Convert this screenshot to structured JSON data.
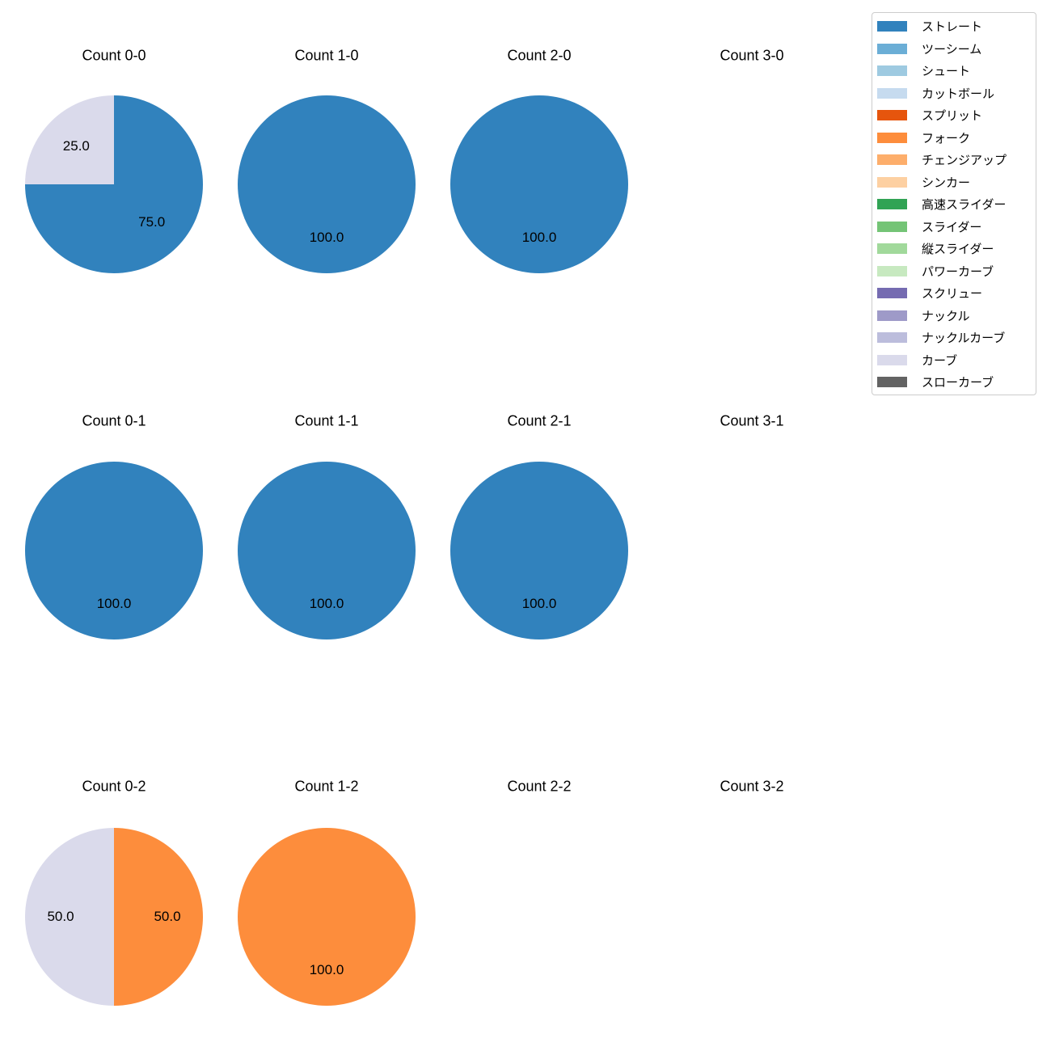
{
  "figure": {
    "background_color": "#ffffff",
    "text_color": "#000000"
  },
  "legend": {
    "items": [
      {
        "label": "ストレート",
        "color": "#3182bd"
      },
      {
        "label": "ツーシーム",
        "color": "#6baed6"
      },
      {
        "label": "シュート",
        "color": "#9ecae1"
      },
      {
        "label": "カットボール",
        "color": "#c6dbef"
      },
      {
        "label": "スプリット",
        "color": "#e6550d"
      },
      {
        "label": "フォーク",
        "color": "#fd8d3c"
      },
      {
        "label": "チェンジアップ",
        "color": "#fdae6b"
      },
      {
        "label": "シンカー",
        "color": "#fdd0a2"
      },
      {
        "label": "高速スライダー",
        "color": "#31a354"
      },
      {
        "label": "スライダー",
        "color": "#74c476"
      },
      {
        "label": "縦スライダー",
        "color": "#a1d99b"
      },
      {
        "label": "パワーカーブ",
        "color": "#c7e9c0"
      },
      {
        "label": "スクリュー",
        "color": "#756bb1"
      },
      {
        "label": "ナックル",
        "color": "#9e9ac8"
      },
      {
        "label": "ナックルカーブ",
        "color": "#bcbddc"
      },
      {
        "label": "カーブ",
        "color": "#dadaeb"
      },
      {
        "label": "スローカーブ",
        "color": "#636363"
      }
    ]
  },
  "chart_data": [
    {
      "type": "pie",
      "title": "Count 0-0",
      "labels": [
        "ストレート",
        "カーブ"
      ],
      "values": [
        75.0,
        25.0
      ],
      "value_labels": [
        "75.0",
        "25.0"
      ]
    },
    {
      "type": "pie",
      "title": "Count 1-0",
      "labels": [
        "ストレート"
      ],
      "values": [
        100.0
      ],
      "value_labels": [
        "100.0"
      ]
    },
    {
      "type": "pie",
      "title": "Count 2-0",
      "labels": [
        "ストレート"
      ],
      "values": [
        100.0
      ],
      "value_labels": [
        "100.0"
      ]
    },
    {
      "type": "pie",
      "title": "Count 3-0",
      "labels": [],
      "values": [],
      "value_labels": []
    },
    {
      "type": "pie",
      "title": "Count 0-1",
      "labels": [
        "ストレート"
      ],
      "values": [
        100.0
      ],
      "value_labels": [
        "100.0"
      ]
    },
    {
      "type": "pie",
      "title": "Count 1-1",
      "labels": [
        "ストレート"
      ],
      "values": [
        100.0
      ],
      "value_labels": [
        "100.0"
      ]
    },
    {
      "type": "pie",
      "title": "Count 2-1",
      "labels": [
        "ストレート"
      ],
      "values": [
        100.0
      ],
      "value_labels": [
        "100.0"
      ]
    },
    {
      "type": "pie",
      "title": "Count 3-1",
      "labels": [],
      "values": [],
      "value_labels": []
    },
    {
      "type": "pie",
      "title": "Count 0-2",
      "labels": [
        "フォーク",
        "カーブ"
      ],
      "values": [
        50.0,
        50.0
      ],
      "value_labels": [
        "50.0",
        "50.0"
      ]
    },
    {
      "type": "pie",
      "title": "Count 1-2",
      "labels": [
        "フォーク"
      ],
      "values": [
        100.0
      ],
      "value_labels": [
        "100.0"
      ]
    },
    {
      "type": "pie",
      "title": "Count 2-2",
      "labels": [],
      "values": [],
      "value_labels": []
    },
    {
      "type": "pie",
      "title": "Count 3-2",
      "labels": [],
      "values": [],
      "value_labels": []
    }
  ],
  "pie_style": {
    "start_angle_deg": 0,
    "direction": "clockwise-from-top",
    "pct_label_distance": 0.6
  }
}
